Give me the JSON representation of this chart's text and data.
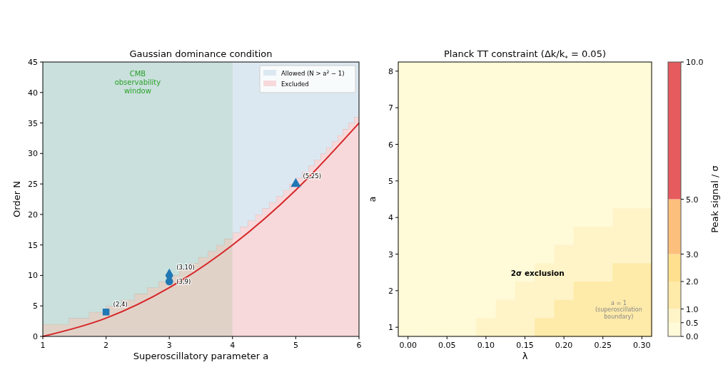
{
  "chart_data": [
    {
      "type": "line",
      "title": "Gaussian dominance condition",
      "xlabel": "Superoscillatory parameter a",
      "ylabel": "Order N",
      "xlim": [
        1,
        6
      ],
      "xticks": [
        1,
        2,
        3,
        4,
        5,
        6
      ],
      "ylim": [
        0,
        45
      ],
      "yticks": [
        0,
        5,
        10,
        15,
        20,
        25,
        30,
        35,
        40,
        45
      ],
      "legend": "top right",
      "stacked": true,
      "bands": [
        {
          "axis": "x",
          "from": 1,
          "to": 4,
          "label": "CMB\nobservability\nwindow",
          "color": "#2ca02c"
        }
      ],
      "annotations": [
        {
          "text": "(2,4)",
          "x": 2,
          "y": 4
        },
        {
          "text": "(3,9)",
          "x": 3,
          "y": 9
        },
        {
          "text": "(3,10)",
          "x": 3,
          "y": 10
        },
        {
          "text": "(5,25)",
          "x": 5,
          "y": 25
        }
      ],
      "series": [
        {
          "type": "area",
          "name": "Excluded",
          "color": "#f7d9db",
          "x": [
            1,
            1.41,
            1.41,
            1.73,
            1.73,
            2,
            2,
            2.24,
            2.24,
            2.45,
            2.45,
            2.65,
            2.65,
            2.83,
            2.83,
            3,
            3,
            3.16,
            3.16,
            3.32,
            3.32,
            3.46,
            3.46,
            3.61,
            3.61,
            3.74,
            3.74,
            3.87,
            3.87,
            4,
            4,
            4.12,
            4.12,
            4.24,
            4.24,
            4.36,
            4.36,
            4.47,
            4.47,
            4.58,
            4.58,
            4.69,
            4.69,
            4.8,
            4.8,
            4.9,
            4.9,
            5,
            5,
            5.1,
            5.1,
            5.2,
            5.2,
            5.29,
            5.29,
            5.39,
            5.39,
            5.48,
            5.48,
            5.57,
            5.57,
            5.66,
            5.66,
            5.74,
            5.74,
            5.83,
            5.83,
            5.92,
            5.92,
            6
          ],
          "values": [
            2,
            2,
            3,
            3,
            4,
            4,
            5,
            5,
            6,
            6,
            7,
            7,
            8,
            8,
            9,
            9,
            10,
            10,
            11,
            11,
            12,
            12,
            13,
            13,
            14,
            14,
            15,
            15,
            16,
            16,
            17,
            17,
            18,
            18,
            19,
            19,
            20,
            20,
            21,
            21,
            22,
            22,
            23,
            23,
            24,
            24,
            25,
            25,
            26,
            26,
            27,
            27,
            28,
            28,
            29,
            29,
            30,
            30,
            31,
            31,
            32,
            32,
            33,
            33,
            34,
            34,
            35,
            35,
            36,
            36
          ]
        },
        {
          "type": "area",
          "name": "Allowed (N > a$^{2}$ − 1)",
          "color": "#dce8f1",
          "x": [
            1,
            1.41,
            1.41,
            1.73,
            1.73,
            2,
            2,
            2.24,
            2.24,
            2.45,
            2.45,
            2.65,
            2.65,
            2.83,
            2.83,
            3,
            3,
            3.16,
            3.16,
            3.32,
            3.32,
            3.46,
            3.46,
            3.61,
            3.61,
            3.74,
            3.74,
            3.87,
            3.87,
            4,
            4,
            4.12,
            4.12,
            4.24,
            4.24,
            4.36,
            4.36,
            4.47,
            4.47,
            4.58,
            4.58,
            4.69,
            4.69,
            4.8,
            4.8,
            4.9,
            4.9,
            5,
            5,
            5.1,
            5.1,
            5.2,
            5.2,
            5.29,
            5.29,
            5.39,
            5.39,
            5.48,
            5.48,
            5.57,
            5.57,
            5.66,
            5.66,
            5.74,
            5.74,
            5.83,
            5.83,
            5.92,
            5.92,
            6
          ],
          "values": [
            43,
            43,
            42,
            42,
            41,
            41,
            40,
            40,
            39,
            39,
            38,
            38,
            37,
            37,
            36,
            36,
            35,
            35,
            34,
            34,
            33,
            33,
            32,
            32,
            31,
            31,
            30,
            30,
            29,
            29,
            28,
            28,
            27,
            27,
            26,
            26,
            25,
            25,
            24,
            24,
            23,
            23,
            22,
            22,
            21,
            21,
            20,
            20,
            19,
            19,
            18,
            18,
            17,
            17,
            16,
            16,
            15,
            15,
            14,
            14,
            13,
            13,
            12,
            12,
            11,
            11,
            10,
            10,
            9,
            9
          ]
        },
        {
          "type": "line",
          "color": "#d62728",
          "x": [
            1,
            2,
            3,
            4,
            5,
            6
          ],
          "values": [
            0,
            3,
            8,
            15,
            24,
            35
          ]
        },
        {
          "type": "scatter",
          "color": "#1f77b4",
          "marker": "square",
          "x": [
            2
          ],
          "values": [
            4
          ]
        },
        {
          "type": "scatter",
          "color": "#1f77b4",
          "marker": "circle",
          "x": [
            3
          ],
          "values": [
            9
          ]
        },
        {
          "type": "scatter",
          "color": "#1f77b4",
          "marker": "diamond",
          "x": [
            3
          ],
          "values": [
            10
          ]
        },
        {
          "type": "scatter",
          "color": "#1f77b4",
          "marker": "triangle",
          "x": [
            5
          ],
          "values": [
            25
          ]
        }
      ]
    },
    {
      "type": "heatmap",
      "title": "Planck TT constraint (Δk/k$_{*}$ = 0.05)",
      "xlabel": "λ",
      "ylabel": "a",
      "clabel": "Peak signal / σ",
      "clim": [
        0,
        10
      ],
      "cticks": [
        {
          "value": 0,
          "label": "0.0"
        },
        0.5,
        {
          "value": 1,
          "label": "1.0"
        },
        {
          "value": 2,
          "label": "2.0"
        },
        {
          "value": 3,
          "label": "3.0"
        },
        {
          "value": 5,
          "label": "5.0"
        },
        {
          "value": 10,
          "label": "10.0"
        }
      ],
      "colors": [
        "#fffad8",
        "#fff4c8",
        "#feeaa9",
        "#fee08f",
        "#fdbf7c",
        "#e55b5e"
      ],
      "annotations": [
        "2σ exclusion",
        "a = 1\n(superoscillation\nboundary)"
      ],
      "categories": [
        "0.00",
        null,
        "0.05",
        null,
        "0.10",
        null,
        "0.15",
        null,
        "0.20",
        null,
        "0.25",
        null,
        "0.30"
      ],
      "y_categories": [
        "8",
        null,
        "7",
        null,
        "6",
        null,
        "5",
        null,
        "4",
        null,
        "3",
        null,
        "2",
        null,
        "1"
      ],
      "cells": [
        [
          0.25,
          0.25,
          0.25,
          0.25,
          0.25,
          0.25,
          0.25,
          0.25,
          0.25,
          0.25,
          0.25,
          0.25,
          0.25
        ],
        [
          0.25,
          0.25,
          0.25,
          0.25,
          0.25,
          0.25,
          0.25,
          0.25,
          0.25,
          0.25,
          0.25,
          0.25,
          0.25
        ],
        [
          0.25,
          0.25,
          0.25,
          0.25,
          0.25,
          0.25,
          0.25,
          0.25,
          0.25,
          0.25,
          0.25,
          0.25,
          0.25
        ],
        [
          0.25,
          0.25,
          0.25,
          0.25,
          0.25,
          0.25,
          0.25,
          0.25,
          0.25,
          0.25,
          0.25,
          0.25,
          0.25
        ],
        [
          0.25,
          0.25,
          0.25,
          0.25,
          0.25,
          0.25,
          0.25,
          0.25,
          0.25,
          0.25,
          0.25,
          0.25,
          0.25
        ],
        [
          0.25,
          0.25,
          0.25,
          0.25,
          0.25,
          0.25,
          0.25,
          0.25,
          0.25,
          0.25,
          0.25,
          0.25,
          0.25
        ],
        [
          0.25,
          0.25,
          0.25,
          0.25,
          0.25,
          0.25,
          0.25,
          0.25,
          0.25,
          0.25,
          0.25,
          0.25,
          0.25
        ],
        [
          0.25,
          0.25,
          0.25,
          0.25,
          0.25,
          0.25,
          0.25,
          0.25,
          0.25,
          0.25,
          0.25,
          0.25,
          0.25
        ],
        [
          0.25,
          0.25,
          0.25,
          0.25,
          0.25,
          0.25,
          0.25,
          0.25,
          0.25,
          0.25,
          0.25,
          0.75,
          0.75
        ],
        [
          0.25,
          0.25,
          0.25,
          0.25,
          0.25,
          0.25,
          0.25,
          0.25,
          0.25,
          0.75,
          0.75,
          0.75,
          0.75
        ],
        [
          0.25,
          0.25,
          0.25,
          0.25,
          0.25,
          0.25,
          0.25,
          0.25,
          0.75,
          0.75,
          0.75,
          0.75,
          0.75
        ],
        [
          0.25,
          0.25,
          0.25,
          0.25,
          0.25,
          0.25,
          0.25,
          0.75,
          0.75,
          0.75,
          0.75,
          1.5,
          1.5
        ],
        [
          0.25,
          0.25,
          0.25,
          0.25,
          0.25,
          0.25,
          0.75,
          0.75,
          0.75,
          1.5,
          1.5,
          1.5,
          1.5
        ],
        [
          0.25,
          0.25,
          0.25,
          0.25,
          0.25,
          0.75,
          0.75,
          0.75,
          1.5,
          1.5,
          1.5,
          1.5,
          1.5
        ],
        [
          0.25,
          0.25,
          0.25,
          0.25,
          0.75,
          0.75,
          0.75,
          1.5,
          1.5,
          1.5,
          1.5,
          1.5,
          1.5
        ]
      ]
    }
  ]
}
